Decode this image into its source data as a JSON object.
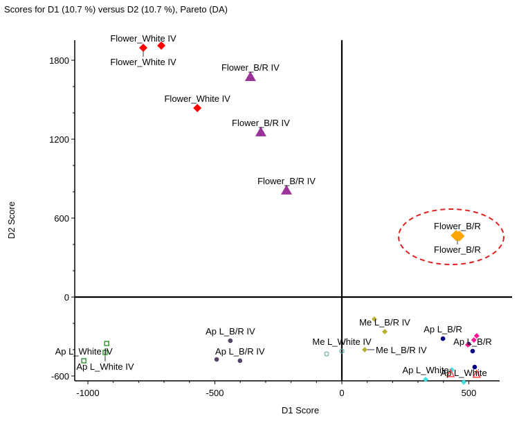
{
  "chart_data": {
    "type": "scatter",
    "title": "Scores for D1 (10.7 %) versus D2 (10.7 %), Pareto (DA)",
    "xlabel": "D1 Score",
    "ylabel": "D2 Score",
    "xlim": [
      -1050,
      560
    ],
    "ylim": [
      -640,
      1950
    ],
    "xticks": [
      -1000,
      -500,
      0,
      500
    ],
    "xtick_labels": [
      "-1000",
      "-500",
      "0",
      "500"
    ],
    "yticks": [
      -600,
      0,
      600,
      1200,
      1800
    ],
    "ytick_labels": [
      "-600",
      "0",
      "600",
      "1200",
      "1800"
    ],
    "grid": false,
    "legend": "none",
    "annotation": "dashed red ellipse around Flower_B/R points",
    "colors": {
      "flower_white_iv": "#ff0000",
      "flower_br_iv": "#993399",
      "flower_br": "#ffa500",
      "apl_white_iv": "#339933",
      "apl_br_iv": "#554466",
      "mel_white_iv": "#66aaaa",
      "mel_br_iv": "#b8b030",
      "apl_br": "#000080",
      "apl_br_magenta": "#ff1493",
      "apl_white": "#40e0e0",
      "apl_white_red": "#ff4040",
      "ellipse": "#e02020"
    },
    "series": [
      {
        "name": "Flower_White IV",
        "marker": "diamond",
        "color_key": "flower_white_iv",
        "points": [
          {
            "x": -782,
            "y": 1895
          },
          {
            "x": -711,
            "y": 1911
          },
          {
            "x": -569,
            "y": 1437
          }
        ]
      },
      {
        "name": "Flower_B/R IV",
        "marker": "triangle",
        "color_key": "flower_br_iv",
        "points": [
          {
            "x": -360,
            "y": 1674
          },
          {
            "x": -319,
            "y": 1253
          },
          {
            "x": -218,
            "y": 811
          }
        ]
      },
      {
        "name": "Flower_B/R",
        "marker": "diamond",
        "color_key": "flower_br",
        "points": [
          {
            "x": 450,
            "y": 468
          },
          {
            "x": 462,
            "y": 464
          }
        ]
      },
      {
        "name": "Ap L_White IV",
        "marker": "square",
        "color_key": "apl_white_iv",
        "points": [
          {
            "x": -1016,
            "y": -484
          },
          {
            "x": -926,
            "y": -353
          },
          {
            "x": -932,
            "y": -421
          }
        ]
      },
      {
        "name": "Ap L_B/R IV",
        "marker": "circle",
        "color_key": "apl_br_iv",
        "points": [
          {
            "x": -439,
            "y": -332
          },
          {
            "x": -493,
            "y": -474
          },
          {
            "x": -401,
            "y": -484
          }
        ]
      },
      {
        "name": "Me L_White IV",
        "marker": "open-circle",
        "color_key": "mel_white_iv",
        "points": [
          {
            "x": -60,
            "y": -432
          },
          {
            "x": 0,
            "y": -411
          }
        ]
      },
      {
        "name": "Me L_B/R IV",
        "marker": "diamond",
        "color_key": "mel_br_iv",
        "points": [
          {
            "x": 128,
            "y": -168
          },
          {
            "x": 169,
            "y": -263
          },
          {
            "x": 90,
            "y": -400
          }
        ]
      },
      {
        "name": "Ap L_B/R",
        "marker": "circle",
        "color_key": "apl_br",
        "points": [
          {
            "x": 398,
            "y": -316
          },
          {
            "x": 499,
            "y": -358
          },
          {
            "x": 515,
            "y": -411
          },
          {
            "x": 523,
            "y": -532
          }
        ]
      },
      {
        "name": "Ap L_B/R",
        "marker": "diamond",
        "color_key": "apl_br_magenta",
        "points": [
          {
            "x": 520,
            "y": -326
          },
          {
            "x": 531,
            "y": -295
          },
          {
            "x": 496,
            "y": -363
          }
        ]
      },
      {
        "name": "Ap L_White",
        "marker": "diamond",
        "color_key": "apl_white",
        "points": [
          {
            "x": 330,
            "y": -626
          },
          {
            "x": 433,
            "y": -553
          },
          {
            "x": 480,
            "y": -647
          }
        ]
      },
      {
        "name": "Ap L_White",
        "marker": "open-triangle",
        "color_key": "apl_white_red",
        "points": [
          {
            "x": 428,
            "y": -584
          },
          {
            "x": 531,
            "y": -589
          }
        ]
      }
    ],
    "labels": [
      {
        "text": "Flower_White IV",
        "x": -782,
        "y": 1895,
        "anchor": "above"
      },
      {
        "text": "Flower_White IV",
        "x": -782,
        "y": 1895,
        "anchor": "below"
      },
      {
        "text": "Flower_White IV",
        "x": -569,
        "y": 1437,
        "anchor": "above"
      },
      {
        "text": "Flower_B/R IV",
        "x": -360,
        "y": 1674,
        "anchor": "above"
      },
      {
        "text": "Flower_B/R IV",
        "x": -319,
        "y": 1253,
        "anchor": "above"
      },
      {
        "text": "Flower_B/R IV",
        "x": -218,
        "y": 811,
        "anchor": "above"
      },
      {
        "text": "Flower_B/R",
        "x": 455,
        "y": 468,
        "anchor": "above"
      },
      {
        "text": "Flower_B/R",
        "x": 455,
        "y": 468,
        "anchor": "below"
      },
      {
        "text": "Ap L_White IV",
        "x": -1016,
        "y": -484,
        "anchor": "above"
      },
      {
        "text": "Ap L_White IV",
        "x": -932,
        "y": -421,
        "anchor": "below"
      },
      {
        "text": "Ap L_B/R IV",
        "x": -439,
        "y": -332,
        "anchor": "above"
      },
      {
        "text": "Ap L_B/R IV",
        "x": -401,
        "y": -484,
        "anchor": "above"
      },
      {
        "text": "Me L_White IV",
        "x": 0,
        "y": -411,
        "anchor": "above"
      },
      {
        "text": "Me L_B/R IV",
        "x": 169,
        "y": -263,
        "anchor": "above"
      },
      {
        "text": "Me L_B/R IV",
        "x": 90,
        "y": -400,
        "anchor": "right"
      },
      {
        "text": "Ap L_B/R",
        "x": 398,
        "y": -316,
        "anchor": "above"
      },
      {
        "text": "Ap L_B/R",
        "x": 515,
        "y": -411,
        "anchor": "above"
      },
      {
        "text": "Ap L_White",
        "x": 330,
        "y": -626,
        "anchor": "above"
      },
      {
        "text": "Ap L_White",
        "x": 480,
        "y": -647,
        "anchor": "above"
      }
    ]
  }
}
